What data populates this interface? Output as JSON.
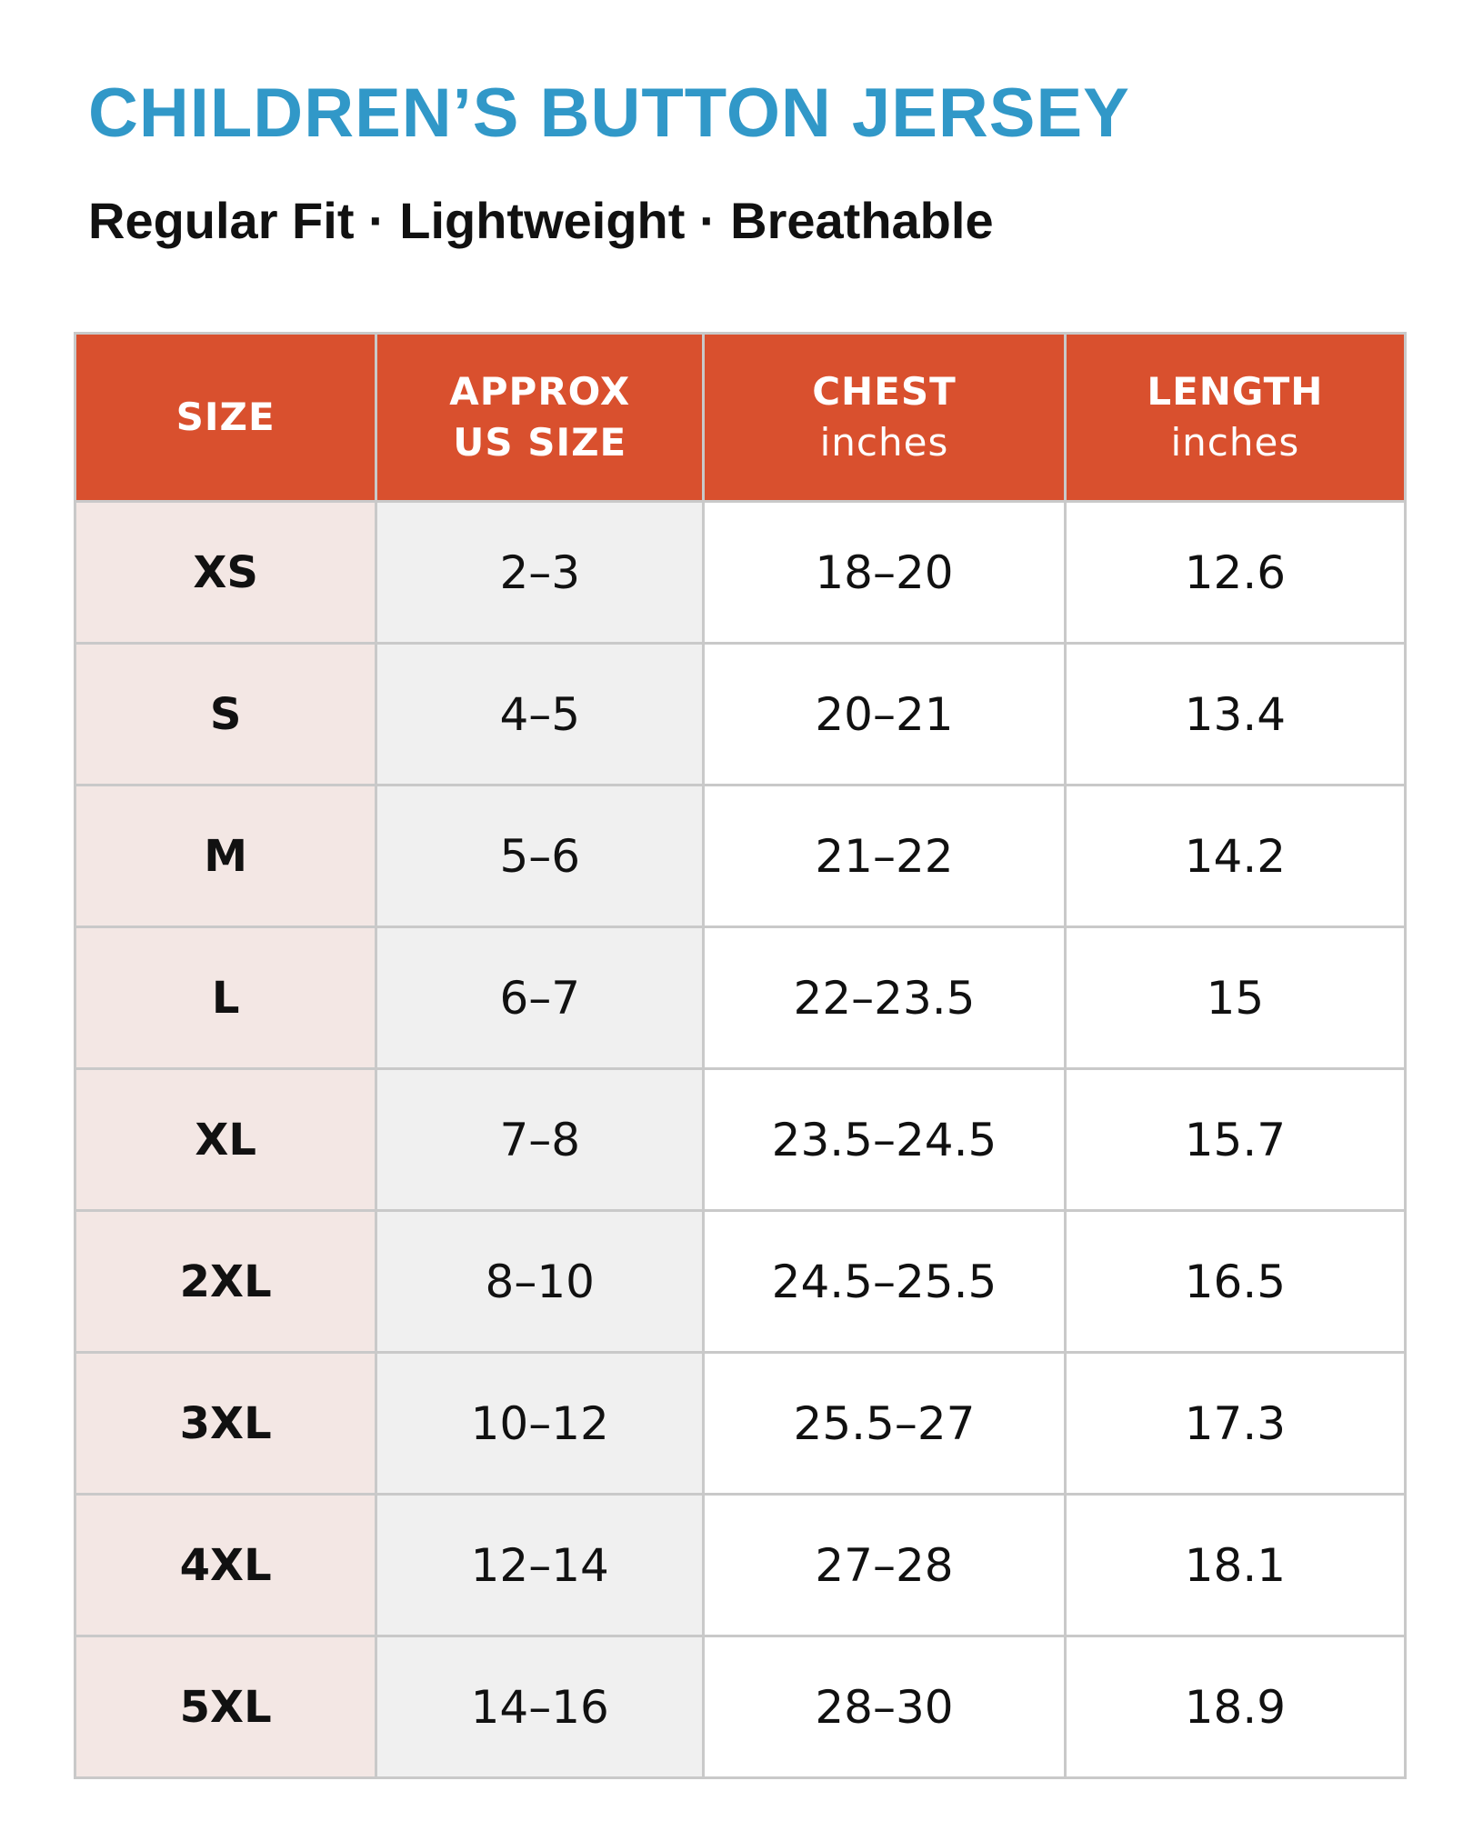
{
  "title": "CHILDREN’S BUTTON JERSEY",
  "subtitle": "Regular Fit · Lightweight · Breathable",
  "colors": {
    "title": "#3198c8",
    "header_bg": "#d9502e",
    "size_col_bg": "#f3e7e4",
    "us_col_bg": "#f0f0f0"
  },
  "table": {
    "headers": [
      {
        "line1": "SIZE",
        "line2": "",
        "unit": ""
      },
      {
        "line1": "APPROX",
        "line2": "US SIZE",
        "unit": ""
      },
      {
        "line1": "CHEST",
        "line2": "",
        "unit": "inches"
      },
      {
        "line1": "LENGTH",
        "line2": "",
        "unit": "inches"
      }
    ],
    "rows": [
      {
        "size": "XS",
        "us_size": "2–3",
        "chest": "18–20",
        "length": "12.6"
      },
      {
        "size": "S",
        "us_size": "4–5",
        "chest": "20–21",
        "length": "13.4"
      },
      {
        "size": "M",
        "us_size": "5–6",
        "chest": "21–22",
        "length": "14.2"
      },
      {
        "size": "L",
        "us_size": "6–7",
        "chest": "22–23.5",
        "length": "15"
      },
      {
        "size": "XL",
        "us_size": "7–8",
        "chest": "23.5–24.5",
        "length": "15.7"
      },
      {
        "size": "2XL",
        "us_size": "8–10",
        "chest": "24.5–25.5",
        "length": "16.5"
      },
      {
        "size": "3XL",
        "us_size": "10–12",
        "chest": "25.5–27",
        "length": "17.3"
      },
      {
        "size": "4XL",
        "us_size": "12–14",
        "chest": "27–28",
        "length": "18.1"
      },
      {
        "size": "5XL",
        "us_size": "14–16",
        "chest": "28–30",
        "length": "18.9"
      }
    ]
  }
}
